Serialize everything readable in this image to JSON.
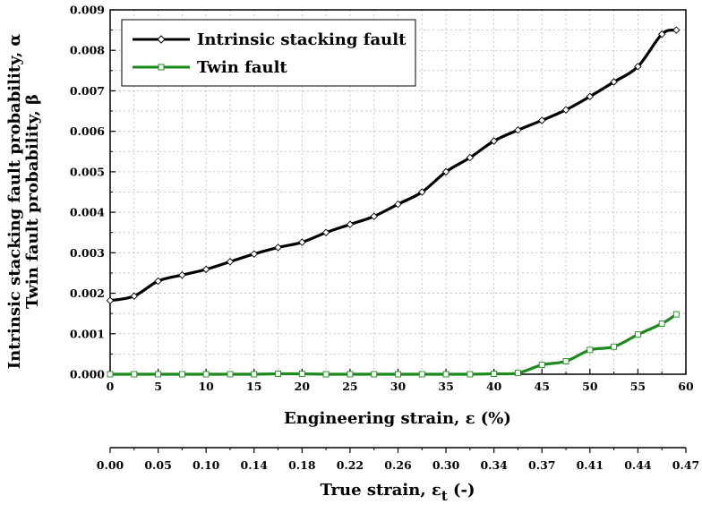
{
  "chart_data": {
    "type": "line",
    "xlabel": "Engineering strain, ε (%)",
    "ylabel_line1": "Intrinsic stacking fault probability, α",
    "ylabel_line2": "Twin fault probability, β",
    "xlim": [
      0,
      60
    ],
    "ylim": [
      0,
      0.009
    ],
    "grid": true,
    "legend_position": "top-left",
    "x_ticks": [
      0,
      5,
      10,
      15,
      20,
      25,
      30,
      35,
      40,
      45,
      50,
      55,
      60
    ],
    "x_tick_labels": [
      "0",
      "5",
      "10",
      "15",
      "20",
      "25",
      "30",
      "35",
      "40",
      "45",
      "50",
      "55",
      "60"
    ],
    "y_ticks": [
      0,
      0.001,
      0.002,
      0.003,
      0.004,
      0.005,
      0.006,
      0.007,
      0.008,
      0.009
    ],
    "y_tick_labels": [
      "0.000",
      "0.001",
      "0.002",
      "0.003",
      "0.004",
      "0.005",
      "0.006",
      "0.007",
      "0.008",
      "0.009"
    ],
    "secondary_x_axis": {
      "label_main": "True strain, ε",
      "label_sub": "t",
      "label_suffix": " (-)",
      "tick_labels": [
        "0.00",
        "0.05",
        "0.10",
        "0.14",
        "0.18",
        "0.22",
        "0.26",
        "0.30",
        "0.34",
        "0.37",
        "0.41",
        "0.44",
        "0.47"
      ]
    },
    "series": [
      {
        "name": "Intrinsic stacking fault",
        "color": "#000000",
        "marker": "diamond",
        "x": [
          0,
          2.5,
          5,
          7.5,
          10,
          12.5,
          15,
          17.5,
          20,
          22.5,
          25,
          27.5,
          30,
          32.5,
          35,
          37.5,
          40,
          42.5,
          45,
          47.5,
          50,
          52.5,
          55,
          57.5,
          59
        ],
        "values": [
          0.00182,
          0.00193,
          0.0023,
          0.00245,
          0.00259,
          0.00278,
          0.00297,
          0.00313,
          0.00326,
          0.0035,
          0.0037,
          0.0039,
          0.0042,
          0.0045,
          0.005,
          0.00535,
          0.00576,
          0.00603,
          0.00627,
          0.00653,
          0.00686,
          0.00722,
          0.0076,
          0.0084,
          0.0085
        ]
      },
      {
        "name": "Twin fault",
        "color": "#1a8a1a",
        "marker": "square",
        "x": [
          0,
          2.5,
          5,
          7.5,
          10,
          12.5,
          15,
          17.5,
          20,
          22.5,
          25,
          27.5,
          30,
          32.5,
          35,
          37.5,
          40,
          42.5,
          45,
          47.5,
          50,
          52.5,
          55,
          57.5,
          59
        ],
        "values": [
          0,
          0,
          0,
          0,
          0,
          0,
          0,
          1e-05,
          1e-05,
          0,
          0,
          0,
          0,
          0,
          0,
          0,
          1e-05,
          3e-05,
          0.00023,
          0.00032,
          0.0006,
          0.00068,
          0.00098,
          0.00125,
          0.00148
        ]
      }
    ]
  }
}
